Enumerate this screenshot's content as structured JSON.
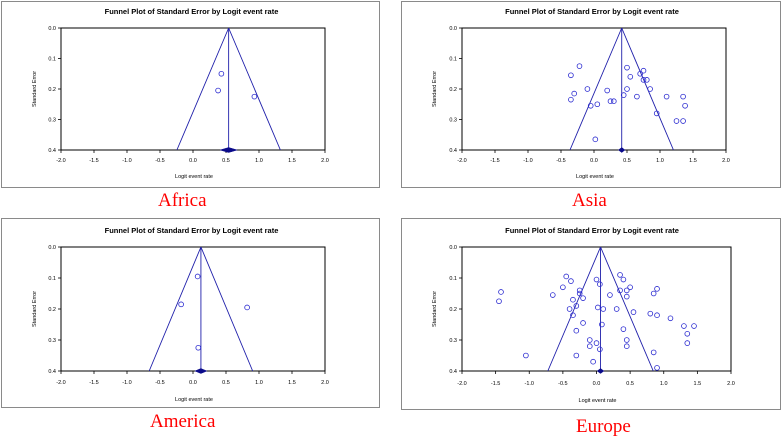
{
  "chart_data": [
    {
      "type": "scatter",
      "title": "Funnel Plot of Standard Error by Logit event rate",
      "xlabel": "Logit event rate",
      "ylabel": "Standard Error",
      "xlim": [
        -2.0,
        2.0
      ],
      "ylim": [
        0.0,
        0.4
      ],
      "y_inverted": true,
      "xticks": [
        -2.0,
        -1.5,
        -1.0,
        -0.5,
        0.0,
        0.5,
        1.0,
        1.5,
        2.0
      ],
      "xtick_labels": [
        "-2.0",
        "-1.5",
        "-1.0",
        "-0.5",
        "0.0",
        "0.5",
        "1.0",
        "1.5",
        "2.0"
      ],
      "yticks": [
        0.0,
        0.1,
        0.2,
        0.3,
        0.4
      ],
      "ytick_labels": [
        "0.0",
        "0.1",
        "0.2",
        "0.3",
        "0.4"
      ],
      "pooled_estimate": 0.54,
      "points": [
        [
          0.43,
          0.15
        ],
        [
          0.38,
          0.205
        ],
        [
          0.93,
          0.225
        ]
      ],
      "region": "Africa"
    },
    {
      "type": "scatter",
      "title": "Funnel Plot of Standard Error by Logit event rate",
      "xlabel": "Logit event rate",
      "ylabel": "Standard Error",
      "xlim": [
        -2.0,
        2.0
      ],
      "ylim": [
        0.0,
        0.4
      ],
      "y_inverted": true,
      "xticks": [
        -2.0,
        -1.5,
        -1.0,
        -0.5,
        0.0,
        0.5,
        1.0,
        1.5,
        2.0
      ],
      "xtick_labels": [
        "-2.0",
        "-1.5",
        "-1.0",
        "-0.5",
        "0.0",
        "0.5",
        "1.0",
        "1.5",
        "2.0"
      ],
      "yticks": [
        0.0,
        0.1,
        0.2,
        0.3,
        0.4
      ],
      "ytick_labels": [
        "0.0",
        "0.1",
        "0.2",
        "0.3",
        "0.4"
      ],
      "pooled_estimate": 0.42,
      "points": [
        [
          -0.22,
          0.125
        ],
        [
          -0.35,
          0.155
        ],
        [
          -0.3,
          0.215
        ],
        [
          -0.35,
          0.235
        ],
        [
          -0.1,
          0.2
        ],
        [
          -0.05,
          0.255
        ],
        [
          0.05,
          0.25
        ],
        [
          0.25,
          0.24
        ],
        [
          0.3,
          0.24
        ],
        [
          0.2,
          0.205
        ],
        [
          0.45,
          0.22
        ],
        [
          0.5,
          0.2
        ],
        [
          0.55,
          0.16
        ],
        [
          0.5,
          0.13
        ],
        [
          0.65,
          0.225
        ],
        [
          0.7,
          0.15
        ],
        [
          0.75,
          0.14
        ],
        [
          0.8,
          0.17
        ],
        [
          0.75,
          0.17
        ],
        [
          0.85,
          0.2
        ],
        [
          0.95,
          0.28
        ],
        [
          1.1,
          0.225
        ],
        [
          1.25,
          0.305
        ],
        [
          1.35,
          0.225
        ],
        [
          1.38,
          0.255
        ],
        [
          1.35,
          0.305
        ],
        [
          0.02,
          0.365
        ]
      ],
      "region": "Asia"
    },
    {
      "type": "scatter",
      "title": "Funnel Plot of Standard Error by Logit event rate",
      "xlabel": "Logit event rate",
      "ylabel": "Standard Error",
      "xlim": [
        -2.0,
        2.0
      ],
      "ylim": [
        0.0,
        0.4
      ],
      "y_inverted": true,
      "xticks": [
        -2.0,
        -1.5,
        -1.0,
        -0.5,
        0.0,
        0.5,
        1.0,
        1.5,
        2.0
      ],
      "xtick_labels": [
        "-2.0",
        "-1.5",
        "-1.0",
        "-0.5",
        "0.0",
        "0.5",
        "1.0",
        "1.5",
        "2.0"
      ],
      "yticks": [
        0.0,
        0.1,
        0.2,
        0.3,
        0.4
      ],
      "ytick_labels": [
        "0.0",
        "0.1",
        "0.2",
        "0.3",
        "0.4"
      ],
      "pooled_estimate": 0.12,
      "points": [
        [
          0.07,
          0.095
        ],
        [
          -0.18,
          0.185
        ],
        [
          0.82,
          0.195
        ],
        [
          0.08,
          0.325
        ]
      ],
      "region": "America"
    },
    {
      "type": "scatter",
      "title": "Funnel Plot of Standard Error by Logit event rate",
      "xlabel": "Logit event rate",
      "ylabel": "Standard Error",
      "xlim": [
        -2.0,
        2.0
      ],
      "ylim": [
        0.0,
        0.4
      ],
      "y_inverted": true,
      "xticks": [
        -2.0,
        -1.5,
        -1.0,
        -0.5,
        0.0,
        0.5,
        1.0,
        1.5,
        2.0
      ],
      "xtick_labels": [
        "-2.0",
        "-1.5",
        "-1.0",
        "-0.5",
        "0.0",
        "0.5",
        "1.0",
        "1.5",
        "2.0"
      ],
      "yticks": [
        0.0,
        0.1,
        0.2,
        0.3,
        0.4
      ],
      "ytick_labels": [
        "0.0",
        "0.1",
        "0.2",
        "0.3",
        "0.4"
      ],
      "pooled_estimate": 0.06,
      "points": [
        [
          -1.42,
          0.145
        ],
        [
          -1.45,
          0.175
        ],
        [
          -0.65,
          0.155
        ],
        [
          -0.45,
          0.095
        ],
        [
          -0.38,
          0.11
        ],
        [
          -0.5,
          0.13
        ],
        [
          -0.35,
          0.17
        ],
        [
          -0.4,
          0.2
        ],
        [
          -0.3,
          0.19
        ],
        [
          -0.35,
          0.22
        ],
        [
          -0.25,
          0.14
        ],
        [
          -0.2,
          0.165
        ],
        [
          -0.3,
          0.27
        ],
        [
          -0.2,
          0.245
        ],
        [
          -0.1,
          0.3
        ],
        [
          0.0,
          0.105
        ],
        [
          0.05,
          0.12
        ],
        [
          0.02,
          0.195
        ],
        [
          0.1,
          0.2
        ],
        [
          0.08,
          0.25
        ],
        [
          0.0,
          0.31
        ],
        [
          0.05,
          0.33
        ],
        [
          -0.1,
          0.32
        ],
        [
          -0.3,
          0.35
        ],
        [
          -0.05,
          0.37
        ],
        [
          0.2,
          0.155
        ],
        [
          0.35,
          0.09
        ],
        [
          0.4,
          0.105
        ],
        [
          0.35,
          0.14
        ],
        [
          0.45,
          0.16
        ],
        [
          0.45,
          0.14
        ],
        [
          0.3,
          0.2
        ],
        [
          0.55,
          0.21
        ],
        [
          0.4,
          0.265
        ],
        [
          0.45,
          0.3
        ],
        [
          0.45,
          0.32
        ],
        [
          0.85,
          0.15
        ],
        [
          0.9,
          0.135
        ],
        [
          0.8,
          0.215
        ],
        [
          0.9,
          0.22
        ],
        [
          0.85,
          0.34
        ],
        [
          0.9,
          0.39
        ],
        [
          1.1,
          0.23
        ],
        [
          1.3,
          0.255
        ],
        [
          1.35,
          0.28
        ],
        [
          1.45,
          0.255
        ],
        [
          1.35,
          0.31
        ],
        [
          -1.05,
          0.35
        ],
        [
          -0.25,
          0.15
        ],
        [
          0.5,
          0.13
        ]
      ],
      "region": "Europe"
    }
  ]
}
